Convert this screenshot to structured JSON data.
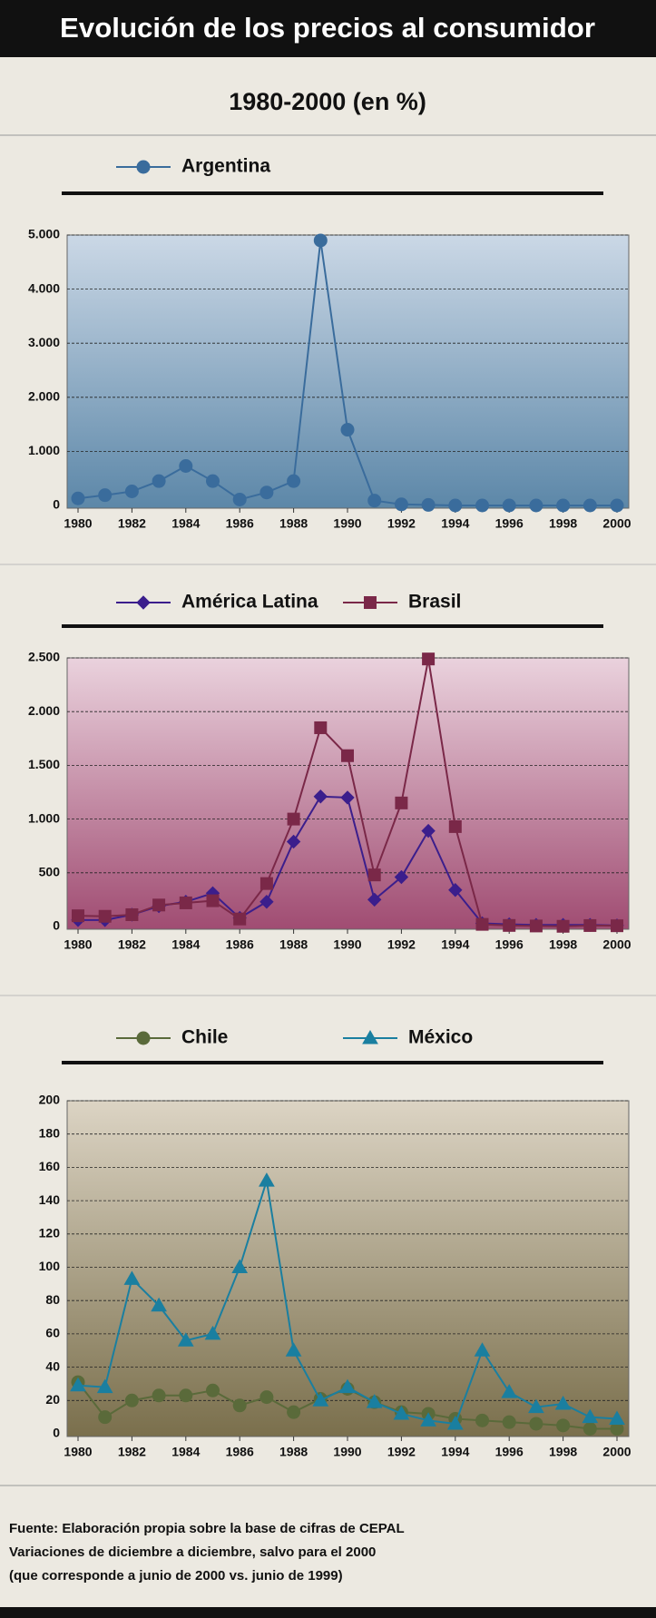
{
  "title": "Evolución de los precios al consumidor",
  "subtitle": "1980-2000 (en %)",
  "chart_data": [
    {
      "type": "line",
      "x": [
        1980,
        1981,
        1982,
        1983,
        1984,
        1985,
        1986,
        1987,
        1988,
        1989,
        1990,
        1991,
        1992,
        1993,
        1994,
        1995,
        1996,
        1997,
        1998,
        1999,
        2000
      ],
      "xlim": [
        1980,
        2000
      ],
      "xticks": [
        1980,
        1982,
        1984,
        1986,
        1988,
        1990,
        1992,
        1994,
        1996,
        1998,
        2000
      ],
      "ylim": [
        0,
        5000
      ],
      "yticks": [
        0,
        {
          "value": 1000,
          "label": "1.000"
        },
        {
          "value": 2000,
          "label": "2.000"
        },
        {
          "value": 3000,
          "label": "3.000"
        },
        {
          "value": 4000,
          "label": "4.000"
        },
        {
          "value": 5000,
          "label": "5.000"
        }
      ],
      "grid": true,
      "plot_background": [
        "#cbd8e6",
        "#5c87a8"
      ],
      "series": [
        {
          "name": "Argentina",
          "color": "#3a6c9c",
          "marker": "circle",
          "values": [
            130,
            190,
            260,
            450,
            730,
            450,
            110,
            240,
            450,
            4900,
            1400,
            90,
            20,
            10,
            0,
            0,
            0,
            0,
            0,
            0,
            0
          ]
        }
      ]
    },
    {
      "type": "line",
      "x": [
        1980,
        1981,
        1982,
        1983,
        1984,
        1985,
        1986,
        1987,
        1988,
        1989,
        1990,
        1991,
        1992,
        1993,
        1994,
        1995,
        1996,
        1997,
        1998,
        1999,
        2000
      ],
      "xlim": [
        1980,
        2000
      ],
      "xticks": [
        1980,
        1982,
        1984,
        1986,
        1988,
        1990,
        1992,
        1994,
        1996,
        1998,
        2000
      ],
      "ylim": [
        0,
        2500
      ],
      "yticks": [
        0,
        500,
        {
          "value": 1000,
          "label": "1.000"
        },
        {
          "value": 1500,
          "label": "1.500"
        },
        {
          "value": 2000,
          "label": "2.000"
        },
        {
          "value": 2500,
          "label": "2.500"
        }
      ],
      "grid": true,
      "plot_background": [
        "#ead2dd",
        "#a04c72"
      ],
      "series": [
        {
          "name": "América Latina",
          "color": "#3b1e8c",
          "marker": "diamond",
          "values": [
            60,
            60,
            110,
            190,
            230,
            310,
            80,
            230,
            790,
            1210,
            1200,
            250,
            460,
            890,
            340,
            30,
            20,
            15,
            15,
            15,
            10
          ]
        },
        {
          "name": "Brasil",
          "color": "#7a2848",
          "marker": "square",
          "values": [
            100,
            95,
            110,
            200,
            220,
            240,
            70,
            400,
            1000,
            1850,
            1590,
            480,
            1150,
            2490,
            930,
            20,
            10,
            5,
            2,
            9,
            7
          ]
        }
      ]
    },
    {
      "type": "line",
      "x": [
        1980,
        1981,
        1982,
        1983,
        1984,
        1985,
        1986,
        1987,
        1988,
        1989,
        1990,
        1991,
        1992,
        1993,
        1994,
        1995,
        1996,
        1997,
        1998,
        1999,
        2000
      ],
      "xlim": [
        1980,
        2000
      ],
      "xticks": [
        1980,
        1982,
        1984,
        1986,
        1988,
        1990,
        1992,
        1994,
        1996,
        1998,
        2000
      ],
      "ylim": [
        0,
        200
      ],
      "yticks": [
        0,
        20,
        40,
        60,
        80,
        100,
        120,
        140,
        160,
        180,
        200
      ],
      "grid": true,
      "plot_background": [
        "#dcd4c4",
        "#7a6f4c"
      ],
      "series": [
        {
          "name": "Chile",
          "color": "#5a6a3a",
          "marker": "circle",
          "values": [
            31,
            10,
            20,
            23,
            23,
            26,
            17,
            22,
            13,
            21,
            27,
            19,
            13,
            12,
            9,
            8,
            7,
            6,
            5,
            3,
            3
          ]
        },
        {
          "name": "México",
          "color": "#1a7fa0",
          "marker": "triangle",
          "values": [
            29,
            28,
            93,
            77,
            56,
            60,
            100,
            152,
            50,
            20,
            28,
            19,
            12,
            8,
            6,
            50,
            25,
            16,
            18,
            10,
            9
          ]
        }
      ]
    }
  ],
  "notes": [
    "Fuente: Elaboración propia sobre la base de cifras de CEPAL",
    "Variaciones de diciembre a diciembre, salvo para el 2000",
    "(que corresponde a junio de 2000 vs. junio de 1999)"
  ]
}
